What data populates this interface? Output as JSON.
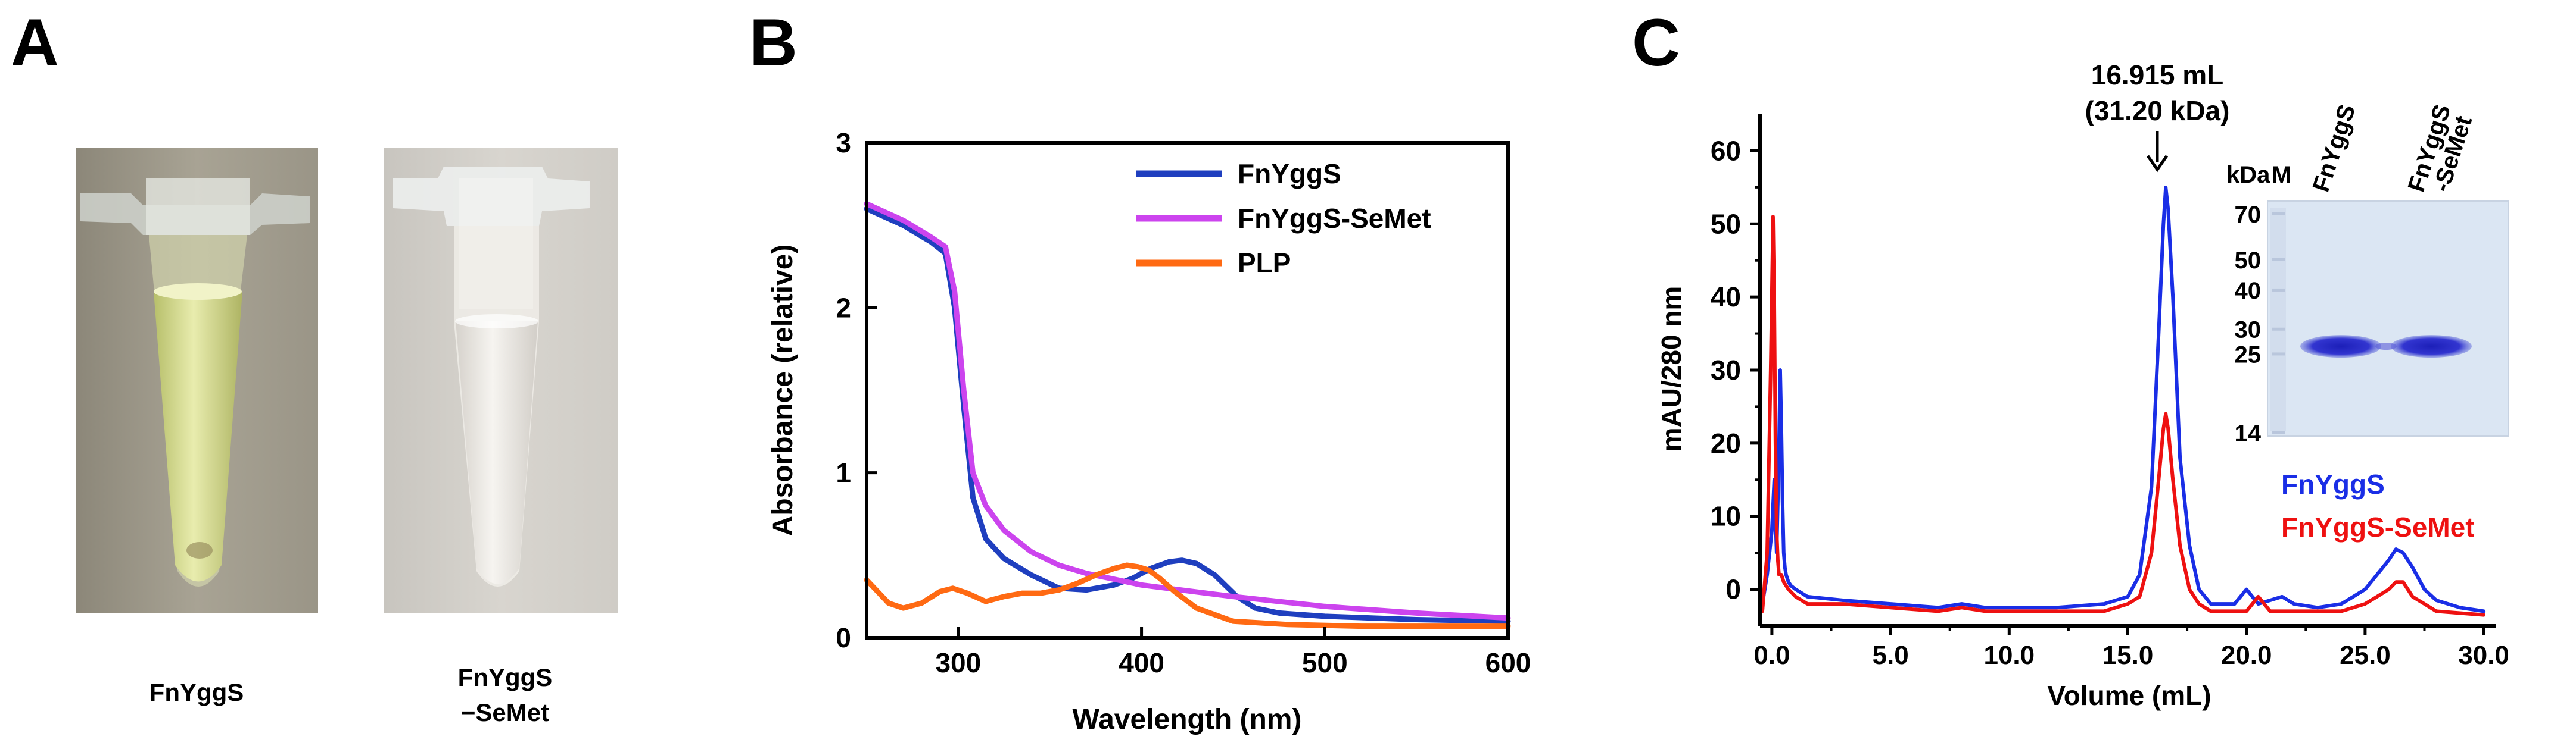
{
  "panels": {
    "a": {
      "letter": "A",
      "tube1_label": "FnYggS",
      "tube2_label_line1": "FnYggS",
      "tube2_label_line2": "−SeMet",
      "tube1_liquid_color": "#d9e09a",
      "tube2_liquid_color": "#ebe7e2"
    },
    "b": {
      "letter": "B"
    },
    "c": {
      "letter": "C"
    }
  },
  "chart_data": [
    {
      "id": "absorbance",
      "type": "line",
      "xlabel": "Wavelength (nm)",
      "ylabel": "Absorbance (relative)",
      "xlim": [
        250,
        600
      ],
      "ylim": [
        0,
        3
      ],
      "xticks": [
        300,
        400,
        500,
        600
      ],
      "yticks": [
        0,
        1,
        2,
        3
      ],
      "legend_position": "top-right",
      "series": [
        {
          "name": "FnYggS",
          "color": "#1f3fbf",
          "x": [
            250,
            270,
            285,
            293,
            298,
            303,
            308,
            315,
            325,
            340,
            355,
            370,
            385,
            395,
            405,
            415,
            422,
            430,
            440,
            452,
            462,
            475,
            500,
            550,
            600
          ],
          "y": [
            2.6,
            2.5,
            2.4,
            2.33,
            2.0,
            1.4,
            0.85,
            0.6,
            0.48,
            0.38,
            0.3,
            0.29,
            0.32,
            0.36,
            0.42,
            0.46,
            0.47,
            0.45,
            0.38,
            0.25,
            0.18,
            0.15,
            0.13,
            0.11,
            0.1
          ]
        },
        {
          "name": "FnYggS-SeMet",
          "color": "#cc44ee",
          "x": [
            250,
            270,
            285,
            293,
            298,
            303,
            308,
            315,
            325,
            340,
            355,
            370,
            400,
            450,
            500,
            550,
            600
          ],
          "y": [
            2.63,
            2.53,
            2.43,
            2.37,
            2.1,
            1.5,
            1.0,
            0.8,
            0.65,
            0.52,
            0.44,
            0.39,
            0.32,
            0.25,
            0.19,
            0.15,
            0.12
          ]
        },
        {
          "name": "PLP",
          "color": "#ff6a13",
          "x": [
            250,
            256,
            262,
            270,
            280,
            290,
            297,
            305,
            315,
            325,
            335,
            345,
            355,
            365,
            375,
            385,
            392,
            398,
            404,
            410,
            418,
            430,
            450,
            480,
            520,
            600
          ],
          "y": [
            0.35,
            0.28,
            0.21,
            0.18,
            0.21,
            0.28,
            0.3,
            0.27,
            0.22,
            0.25,
            0.27,
            0.27,
            0.29,
            0.33,
            0.38,
            0.42,
            0.44,
            0.43,
            0.41,
            0.36,
            0.28,
            0.18,
            0.1,
            0.08,
            0.07,
            0.07
          ]
        }
      ]
    },
    {
      "id": "chromatogram",
      "type": "line",
      "xlabel": "Volume (mL)",
      "ylabel": "mAU/280 nm",
      "xlim": [
        -0.5,
        30.5
      ],
      "ylim": [
        -5,
        65
      ],
      "xticks": [
        "0.0",
        "5.0",
        "10.0",
        "15.0",
        "20.0",
        "25.0",
        "30.0"
      ],
      "yticks": [
        0,
        10,
        20,
        30,
        40,
        50,
        60
      ],
      "annotation_line1": "16.915 mL",
      "annotation_line2": "(31.20 kDa)",
      "annotation_x": 16.6,
      "legend_position": "lower-right",
      "series": [
        {
          "name": "FnYggS",
          "color": "#1a2ee6",
          "x": [
            -0.4,
            -0.2,
            0.0,
            0.1,
            0.2,
            0.25,
            0.3,
            0.35,
            0.4,
            0.45,
            0.5,
            0.55,
            0.6,
            0.7,
            0.8,
            1.0,
            1.5,
            3,
            5,
            7,
            8,
            9,
            10,
            12,
            14,
            15,
            15.5,
            16.0,
            16.3,
            16.5,
            16.6,
            16.7,
            16.9,
            17.2,
            17.6,
            18.0,
            18.5,
            19.5,
            20.0,
            20.5,
            21,
            21.5,
            22,
            23,
            24,
            24.5,
            25,
            25.5,
            26,
            26.3,
            26.6,
            27,
            27.5,
            28,
            29,
            30
          ],
          "y": [
            -2,
            2,
            8,
            15,
            5,
            12,
            20,
            30,
            22,
            12,
            5,
            3,
            2,
            1,
            0.5,
            0,
            -1,
            -1.5,
            -2,
            -2.5,
            -2,
            -2.5,
            -2.5,
            -2.5,
            -2,
            -1,
            2,
            14,
            35,
            50,
            55,
            52,
            40,
            18,
            6,
            0,
            -2,
            -2,
            0,
            -2,
            -1.5,
            -1,
            -2,
            -2.5,
            -2,
            -1,
            0,
            2,
            4,
            5.5,
            5,
            3,
            0,
            -1.5,
            -2.5,
            -3
          ]
        },
        {
          "name": "FnYggS-SeMet",
          "color": "#ee1111",
          "x": [
            -0.4,
            -0.2,
            -0.05,
            0.05,
            0.1,
            0.15,
            0.2,
            0.25,
            0.3,
            0.4,
            0.5,
            0.7,
            1.0,
            1.5,
            3,
            5,
            7,
            8,
            9,
            10,
            12,
            14,
            15,
            15.5,
            16.0,
            16.3,
            16.5,
            16.6,
            16.7,
            16.9,
            17.2,
            17.6,
            18.0,
            18.5,
            20,
            20.5,
            21,
            22,
            24,
            25,
            25.5,
            26,
            26.3,
            26.6,
            27,
            27.5,
            28,
            30
          ],
          "y": [
            -3,
            5,
            30,
            51,
            40,
            20,
            8,
            4,
            2,
            2,
            1,
            0,
            -1,
            -2,
            -2,
            -2.5,
            -3,
            -2.5,
            -3,
            -3,
            -3,
            -3,
            -2,
            -1,
            5,
            15,
            22,
            24,
            22,
            15,
            6,
            0,
            -2,
            -3,
            -3,
            -1,
            -3,
            -3,
            -3,
            -2,
            -1,
            0,
            1,
            1,
            -1,
            -2,
            -3,
            -3.5
          ]
        }
      ]
    }
  ],
  "gel": {
    "unit_label": "kDa",
    "marker_label": "M",
    "lane1_label": "FnYggS",
    "lane2_label_line1": "FnYggS",
    "lane2_label_line2": "-SeMet",
    "ladder": [
      "70",
      "50",
      "40",
      "30",
      "25",
      "14"
    ],
    "ladder_kda": [
      70,
      50,
      40,
      30,
      25,
      14
    ],
    "band_kda": 26.5,
    "background_color": "#dbe6f3",
    "band_color": "#2c2fc8"
  }
}
